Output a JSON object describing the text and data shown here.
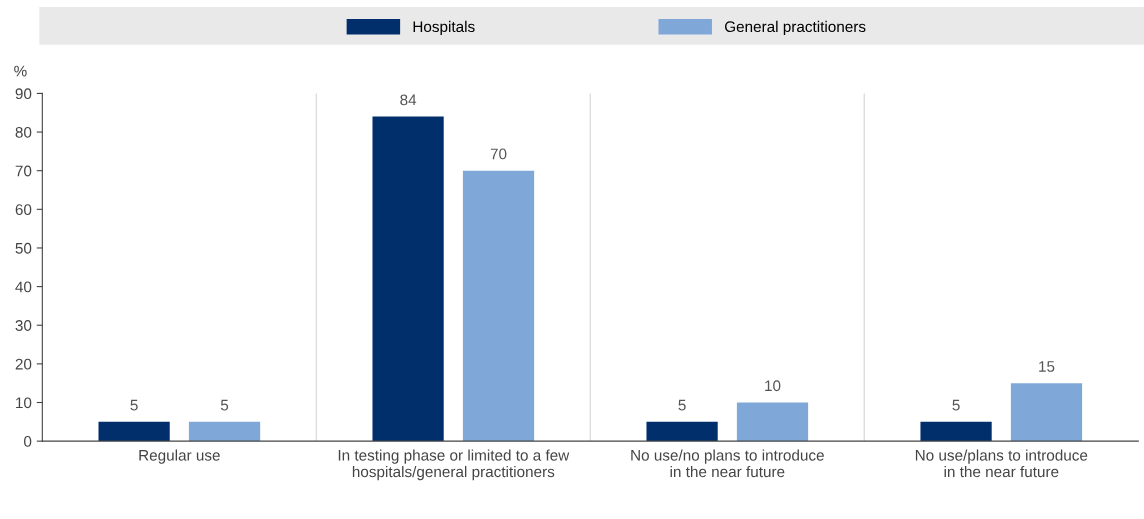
{
  "chart_data": {
    "type": "bar",
    "ylabel": "%",
    "categories": [
      "Regular use",
      "In testing phase or limited to a few\nhospitals/general practitioners",
      "No use/no plans to introduce\nin the near future",
      "No use/plans to introduce\nin the near future"
    ],
    "series": [
      {
        "name": "Hospitals",
        "color": "#002f6c",
        "values": [
          5,
          84,
          5,
          5
        ]
      },
      {
        "name": "General practitioners",
        "color": "#7fa8d9",
        "values": [
          5,
          70,
          10,
          15
        ]
      }
    ],
    "ylim": [
      0,
      90
    ],
    "yticks": [
      0,
      10,
      20,
      30,
      40,
      50,
      60,
      70,
      80,
      90
    ],
    "grid": "x",
    "legend": "top",
    "data_labels": true
  }
}
